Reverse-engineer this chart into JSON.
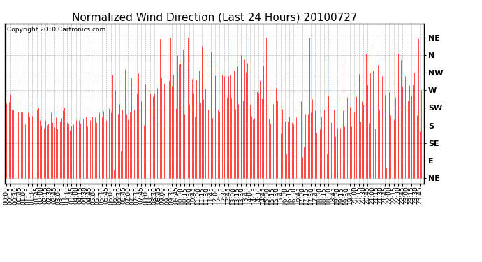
{
  "title": "Normalized Wind Direction (Last 24 Hours) 20100727",
  "copyright_text": "Copyright 2010 Cartronics.com",
  "line_color": "#ff0000",
  "bg_color": "#ffffff",
  "grid_color": "#aaaaaa",
  "ytick_labels": [
    "NE",
    "N",
    "NW",
    "W",
    "SW",
    "S",
    "SE",
    "E",
    "NE"
  ],
  "ytick_values": [
    8,
    7,
    6,
    5,
    4,
    3,
    2,
    1,
    0
  ],
  "ylim": [
    -0.3,
    8.8
  ],
  "title_fontsize": 11,
  "tick_fontsize": 8,
  "copyright_fontsize": 6.5,
  "linewidth": 0.5
}
